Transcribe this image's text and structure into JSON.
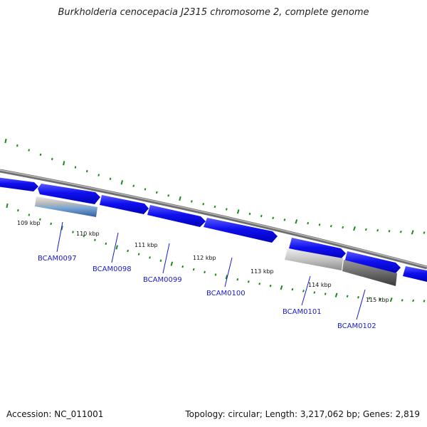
{
  "title": "Burkholderia cenocepacia J2315 chromosome 2, complete genome",
  "footer": {
    "accession": "Accession: NC_011001",
    "summary": "Topology: circular; Length: 3,217,062 bp; Genes: 2,819"
  },
  "ruler": {
    "ticks": [
      {
        "label": "109 kbp"
      },
      {
        "label": "110 kbp"
      },
      {
        "label": "111 kbp"
      },
      {
        "label": "112 kbp"
      },
      {
        "label": "113 kbp"
      },
      {
        "label": "114 kbp"
      },
      {
        "label": "115 kbp"
      }
    ]
  },
  "genes": [
    {
      "label": "BCAM0097"
    },
    {
      "label": "BCAM0098"
    },
    {
      "label": "BCAM0099"
    },
    {
      "label": "BCAM0100"
    },
    {
      "label": "BCAM0101"
    },
    {
      "label": "BCAM0102"
    }
  ],
  "colors": {
    "cds": "#1010f0",
    "backbone": "#808080",
    "tick": "#1a8a1a",
    "label": "#1a1ac8"
  }
}
